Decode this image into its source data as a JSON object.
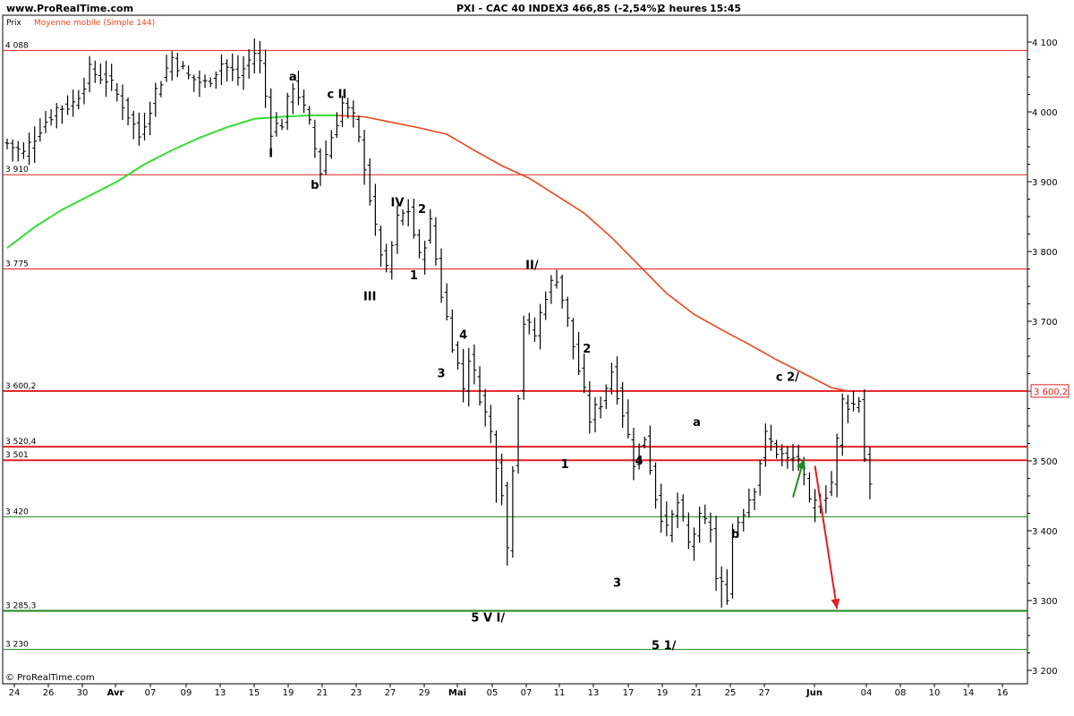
{
  "header": {
    "site": "www.ProRealTime.com",
    "instrument": "PXI - CAC 40 INDEX",
    "quote": "3 466,85 (-2,54%)",
    "timeframe": "2 heures",
    "time": "15:45"
  },
  "legend": {
    "price_label": "Prix",
    "ma_label": "Moyenne mobile (Simple 144)"
  },
  "footer": {
    "copyright": "© ProRealTime.com"
  },
  "colors": {
    "ma_up": "#33dd33",
    "ma_down": "#e8461e",
    "resistance": "#e02020",
    "support": "#1a8a1a",
    "bars": "#000000",
    "arrow_up": "#1a8a1a",
    "arrow_down": "#e02020"
  },
  "chart_data": {
    "type": "ohlc",
    "title": "PXI - CAC 40 INDEX",
    "ylim": [
      3180,
      4110
    ],
    "y_ticks": [
      {
        "value": 4100,
        "label": "4 100"
      },
      {
        "value": 4000,
        "label": "4 000"
      },
      {
        "value": 3900,
        "label": "3 900"
      },
      {
        "value": 3800,
        "label": "3 800"
      },
      {
        "value": 3700,
        "label": "3 700"
      },
      {
        "value": 3600,
        "label": "3 600"
      },
      {
        "value": 3500,
        "label": "3 500"
      },
      {
        "value": 3400,
        "label": "3 400"
      },
      {
        "value": 3300,
        "label": "3 300"
      },
      {
        "value": 3200,
        "label": "3 200"
      }
    ],
    "x_ticks": [
      {
        "label": "24",
        "bold": false
      },
      {
        "label": "26",
        "bold": false
      },
      {
        "label": "30",
        "bold": false
      },
      {
        "label": "Avr",
        "bold": true
      },
      {
        "label": "07",
        "bold": false
      },
      {
        "label": "09",
        "bold": false
      },
      {
        "label": "13",
        "bold": false
      },
      {
        "label": "15",
        "bold": false
      },
      {
        "label": "19",
        "bold": false
      },
      {
        "label": "21",
        "bold": false
      },
      {
        "label": "23",
        "bold": false
      },
      {
        "label": "27",
        "bold": false
      },
      {
        "label": "29",
        "bold": false
      },
      {
        "label": "Mai",
        "bold": true
      },
      {
        "label": "05",
        "bold": false
      },
      {
        "label": "07",
        "bold": false
      },
      {
        "label": "11",
        "bold": false
      },
      {
        "label": "13",
        "bold": false
      },
      {
        "label": "17",
        "bold": false
      },
      {
        "label": "19",
        "bold": false
      },
      {
        "label": "21",
        "bold": false
      },
      {
        "label": "25",
        "bold": false
      },
      {
        "label": "27",
        "bold": false
      },
      {
        "label": "Jun",
        "bold": true
      },
      {
        "label": "04",
        "bold": false
      },
      {
        "label": "08",
        "bold": false
      },
      {
        "label": "10",
        "bold": false
      },
      {
        "label": "14",
        "bold": false
      },
      {
        "label": "16",
        "bold": false
      }
    ],
    "levels": [
      {
        "value": 4088,
        "label": "4 088",
        "kind": "resistance",
        "thick": false
      },
      {
        "value": 3910,
        "label": "3 910",
        "kind": "resistance",
        "thick": false
      },
      {
        "value": 3775,
        "label": "3 775",
        "kind": "resistance",
        "thick": false
      },
      {
        "value": 3600.2,
        "label": "3 600,2",
        "kind": "resistance",
        "thick": true
      },
      {
        "value": 3520.4,
        "label": "3 520,4",
        "kind": "resistance",
        "thick": true
      },
      {
        "value": 3501,
        "label": "3 501",
        "kind": "resistance",
        "thick": true
      },
      {
        "value": 3420,
        "label": "3 420",
        "kind": "support",
        "thick": false
      },
      {
        "value": 3285.3,
        "label": "3 285,3",
        "kind": "support",
        "thick": true
      },
      {
        "value": 3230,
        "label": "3 230",
        "kind": "support",
        "thick": false
      }
    ],
    "price_tag": {
      "value": 3600.2,
      "label": "3 600,2"
    },
    "close_path": [
      [
        0,
        3955
      ],
      [
        3,
        3940
      ],
      [
        6,
        3978
      ],
      [
        9,
        4005
      ],
      [
        12,
        4012
      ],
      [
        15,
        4058
      ],
      [
        18,
        4048
      ],
      [
        21,
        4012
      ],
      [
        24,
        3965
      ],
      [
        27,
        4030
      ],
      [
        30,
        4078
      ],
      [
        33,
        4050
      ],
      [
        36,
        4040
      ],
      [
        39,
        4070
      ],
      [
        42,
        4050
      ],
      [
        45,
        4085
      ],
      [
        46,
        4070
      ],
      [
        48,
        3975
      ],
      [
        50,
        3985
      ],
      [
        52,
        4040
      ],
      [
        53,
        4025
      ],
      [
        55,
        3980
      ],
      [
        57,
        3915
      ],
      [
        59,
        3965
      ],
      [
        61,
        4012
      ],
      [
        63,
        3990
      ],
      [
        65,
        3925
      ],
      [
        67,
        3830
      ],
      [
        69,
        3770
      ],
      [
        71,
        3845
      ],
      [
        73,
        3860
      ],
      [
        75,
        3790
      ],
      [
        77,
        3840
      ],
      [
        79,
        3740
      ],
      [
        81,
        3670
      ],
      [
        83,
        3605
      ],
      [
        84,
        3650
      ],
      [
        86,
        3595
      ],
      [
        88,
        3540
      ],
      [
        90,
        3460
      ],
      [
        91,
        3375
      ],
      [
        92,
        3495
      ],
      [
        94,
        3700
      ],
      [
        96,
        3680
      ],
      [
        98,
        3740
      ],
      [
        100,
        3765
      ],
      [
        102,
        3700
      ],
      [
        104,
        3630
      ],
      [
        106,
        3560
      ],
      [
        108,
        3585
      ],
      [
        110,
        3630
      ],
      [
        112,
        3570
      ],
      [
        114,
        3500
      ],
      [
        116,
        3535
      ],
      [
        118,
        3450
      ],
      [
        120,
        3398
      ],
      [
        122,
        3440
      ],
      [
        124,
        3380
      ],
      [
        126,
        3415
      ],
      [
        128,
        3405
      ],
      [
        129,
        3330
      ],
      [
        131,
        3310
      ],
      [
        132,
        3400
      ],
      [
        134,
        3430
      ],
      [
        136,
        3465
      ],
      [
        138,
        3535
      ],
      [
        140,
        3515
      ],
      [
        142,
        3500
      ],
      [
        144,
        3505
      ],
      [
        146,
        3435
      ],
      [
        148,
        3440
      ],
      [
        150,
        3470
      ],
      [
        152,
        3585
      ],
      [
        154,
        3580
      ],
      [
        155,
        3590
      ],
      [
        156,
        3505
      ],
      [
        157,
        3466.85
      ]
    ],
    "ma_path": [
      [
        0,
        3805
      ],
      [
        5,
        3835
      ],
      [
        10,
        3860
      ],
      [
        15,
        3880
      ],
      [
        20,
        3900
      ],
      [
        25,
        3925
      ],
      [
        30,
        3945
      ],
      [
        35,
        3963
      ],
      [
        40,
        3978
      ],
      [
        45,
        3990
      ],
      [
        50,
        3993
      ],
      [
        55,
        3995
      ],
      [
        60,
        3995
      ],
      [
        65,
        3993
      ],
      [
        70,
        3985
      ],
      [
        75,
        3977
      ],
      [
        80,
        3968
      ],
      [
        85,
        3945
      ],
      [
        90,
        3923
      ],
      [
        95,
        3905
      ],
      [
        100,
        3880
      ],
      [
        105,
        3855
      ],
      [
        110,
        3820
      ],
      [
        115,
        3780
      ],
      [
        120,
        3740
      ],
      [
        125,
        3710
      ],
      [
        130,
        3688
      ],
      [
        135,
        3667
      ],
      [
        140,
        3645
      ],
      [
        145,
        3625
      ],
      [
        150,
        3605
      ],
      [
        153,
        3600.2
      ]
    ],
    "annotations": [
      {
        "text": "I",
        "x": 48,
        "y": 3935
      },
      {
        "text": "a",
        "x": 52,
        "y": 4045
      },
      {
        "text": "b",
        "x": 56,
        "y": 3890
      },
      {
        "text": "c II",
        "x": 60,
        "y": 4020
      },
      {
        "text": "III",
        "x": 66,
        "y": 3730
      },
      {
        "text": "IV",
        "x": 71,
        "y": 3865
      },
      {
        "text": "2",
        "x": 75.5,
        "y": 3855
      },
      {
        "text": "1",
        "x": 74,
        "y": 3760
      },
      {
        "text": "4",
        "x": 83,
        "y": 3675
      },
      {
        "text": "3",
        "x": 79,
        "y": 3620
      },
      {
        "text": "5 V I/",
        "x": 87.5,
        "y": 3270
      },
      {
        "text": "II/",
        "x": 95.5,
        "y": 3775
      },
      {
        "text": "2",
        "x": 105.5,
        "y": 3655
      },
      {
        "text": "1",
        "x": 101.5,
        "y": 3490
      },
      {
        "text": "4",
        "x": 115,
        "y": 3495
      },
      {
        "text": "3",
        "x": 111,
        "y": 3320
      },
      {
        "text": "5 1/",
        "x": 119.5,
        "y": 3230
      },
      {
        "text": "a",
        "x": 125.5,
        "y": 3550
      },
      {
        "text": "b",
        "x": 132.5,
        "y": 3390
      },
      {
        "text": "c 2/",
        "x": 142,
        "y": 3615
      }
    ],
    "arrows": [
      {
        "kind": "up",
        "from": [
          143,
          3448
        ],
        "to": [
          145,
          3503
        ]
      },
      {
        "kind": "down",
        "from": [
          147,
          3493
        ],
        "to": [
          151,
          3288
        ]
      }
    ]
  }
}
